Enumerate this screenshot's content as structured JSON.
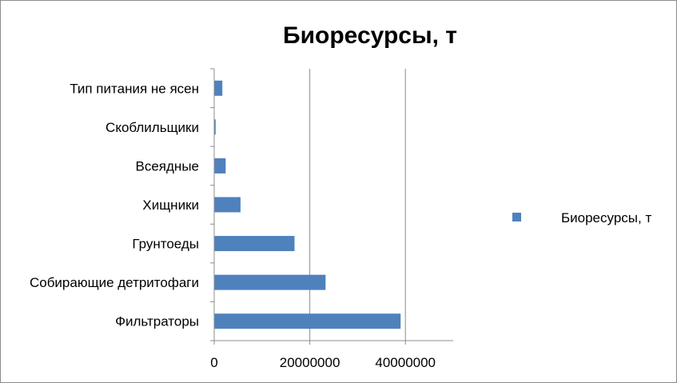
{
  "chart_data": {
    "type": "bar",
    "orientation": "horizontal",
    "title": "Биоресурсы, т",
    "categories": [
      "Фильтраторы",
      "Собирающие детритофаги",
      "Грунтоеды",
      "Хищники",
      "Всеядные",
      "Скоблильщики",
      "Тип питания не ясен"
    ],
    "series": [
      {
        "name": "Биоресурсы, т",
        "color": "#4f81bd",
        "values": [
          39000000,
          23300000,
          16800000,
          5500000,
          2400000,
          300000,
          1700000
        ]
      }
    ],
    "xlim": [
      0,
      50000000
    ],
    "xticks": [
      0,
      20000000,
      40000000
    ],
    "xtick_labels": [
      "0",
      "20000000",
      "40000000"
    ],
    "grid": "vertical major gridlines",
    "legend_position": "right",
    "xlabel": "",
    "ylabel": ""
  }
}
